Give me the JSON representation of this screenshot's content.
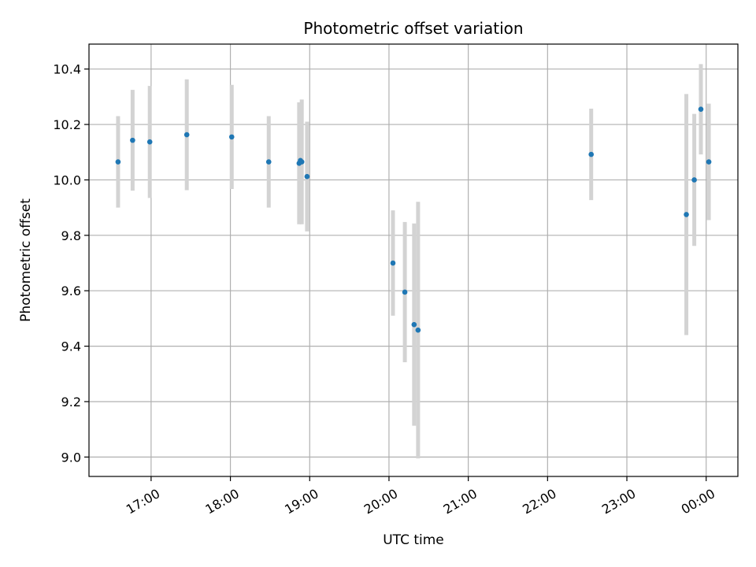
{
  "chart_data": {
    "type": "scatter",
    "title": "Photometric offset variation",
    "xlabel": "UTC time",
    "ylabel": "Photometric offset",
    "x_axis_kind": "time",
    "xlim": [
      "16:13",
      "00:24"
    ],
    "ylim": [
      8.93,
      10.49
    ],
    "x_ticks": [
      "17:00",
      "18:00",
      "19:00",
      "20:00",
      "21:00",
      "22:00",
      "23:00",
      "00:00"
    ],
    "y_ticks": [
      "9.0",
      "9.2",
      "9.4",
      "9.6",
      "9.8",
      "10.0",
      "10.2",
      "10.4"
    ],
    "grid": true,
    "colors": {
      "point": "#1f77b4",
      "errorbar": "#d3d3d3",
      "grid": "#b0b0b0"
    },
    "series": [
      {
        "points": [
          {
            "x": "16:35",
            "y": 10.065,
            "yerr": 0.165
          },
          {
            "x": "16:46",
            "y": 10.143,
            "yerr": 0.182
          },
          {
            "x": "16:59",
            "y": 10.137,
            "yerr": 0.202
          },
          {
            "x": "17:27",
            "y": 10.163,
            "yerr": 0.2
          },
          {
            "x": "18:01",
            "y": 10.155,
            "yerr": 0.188
          },
          {
            "x": "18:29",
            "y": 10.065,
            "yerr": 0.165
          },
          {
            "x": "18:52",
            "y": 10.06,
            "yerr": 0.22
          },
          {
            "x": "18:53",
            "y": 10.07,
            "yerr": 0.2
          },
          {
            "x": "18:54",
            "y": 10.065,
            "yerr": 0.225
          },
          {
            "x": "18:58",
            "y": 10.012,
            "yerr": 0.198
          },
          {
            "x": "20:03",
            "y": 9.7,
            "yerr": 0.19
          },
          {
            "x": "20:12",
            "y": 9.595,
            "yerr": 0.253
          },
          {
            "x": "20:19",
            "y": 9.478,
            "yerr": 0.365
          },
          {
            "x": "20:22",
            "y": 9.458,
            "yerr": 0.463
          },
          {
            "x": "22:33",
            "y": 10.092,
            "yerr": 0.165
          },
          {
            "x": "23:45",
            "y": 9.875,
            "yerr": 0.435
          },
          {
            "x": "23:51",
            "y": 10.0,
            "yerr": 0.238
          },
          {
            "x": "23:56",
            "y": 10.255,
            "yerr": 0.163
          },
          {
            "x": "00:02",
            "y": 10.065,
            "yerr": 0.21
          }
        ]
      }
    ]
  }
}
